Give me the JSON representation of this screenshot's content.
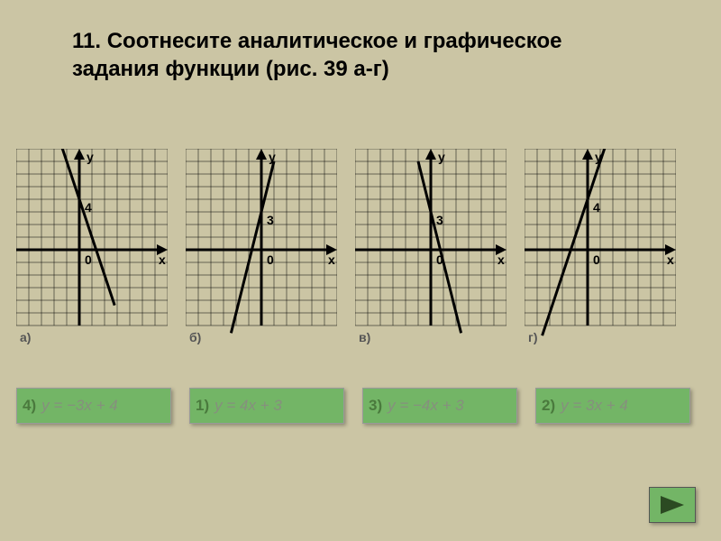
{
  "background_color": "#cbc5a4",
  "title": "11. Соотнесите аналитическое и графическое задания функции (рис. 39 а-г)",
  "title_fontsize": 24,
  "grid": {
    "cols": 12,
    "rows": 14,
    "cell": 14,
    "bg": "#cbc5a4",
    "grid_color": "#000000",
    "axis_color": "#000000",
    "axis_width": 3,
    "line_color": "#000000",
    "line_width": 3,
    "label_color": "#000000",
    "label_fontsize": 14
  },
  "charts": [
    {
      "id": "a",
      "label": "а)",
      "origin_col": 5,
      "y_tick": {
        "val": 4,
        "col": 5
      },
      "line": {
        "slope": -3,
        "intercept": 4,
        "x_from": -1.4,
        "x_to": 2.8
      }
    },
    {
      "id": "b",
      "label": "б)",
      "origin_col": 6,
      "y_tick": {
        "val": 3,
        "col": 6
      },
      "line": {
        "slope": 4,
        "intercept": 3,
        "x_from": -2.4,
        "x_to": 1.0
      }
    },
    {
      "id": "v",
      "label": "в)",
      "origin_col": 6,
      "y_tick": {
        "val": 3,
        "col": 6
      },
      "line": {
        "slope": -4,
        "intercept": 3,
        "x_from": -1.0,
        "x_to": 2.4
      }
    },
    {
      "id": "g",
      "label": "г)",
      "origin_col": 5,
      "y_tick": {
        "val": 4,
        "col": 5
      },
      "line": {
        "slope": 3,
        "intercept": 4,
        "x_from": -3.6,
        "x_to": 1.5
      }
    }
  ],
  "answers": [
    {
      "num": "4)",
      "formula": "y = −3x + 4"
    },
    {
      "num": "1)",
      "formula": "y = 4x + 3"
    },
    {
      "num": "3)",
      "formula": "y = −4x + 3"
    },
    {
      "num": "2)",
      "formula": "y = 3x + 4"
    }
  ],
  "answer_style": {
    "bg": "#73b566",
    "num_color": "#4a7a3d",
    "formula_color": "#868f7e",
    "fontsize": 17,
    "width": 172,
    "height": 40
  },
  "nav": {
    "bg": "#73b566",
    "arrow_color": "#2b4a22"
  }
}
